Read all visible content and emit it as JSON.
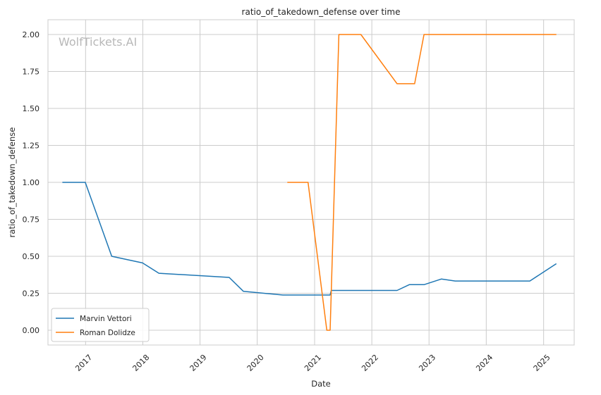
{
  "chart_data": {
    "type": "line",
    "title": "ratio_of_takedown_defense over time",
    "xlabel": "Date",
    "ylabel": "ratio_of_takedown_defense",
    "watermark": "WolfTickets.AI",
    "xlim": [
      "2016-05-06",
      "2025-07-15"
    ],
    "ylim": [
      -0.1,
      2.1
    ],
    "x_ticks": [
      "2017-01-01",
      "2018-01-01",
      "2019-01-01",
      "2020-01-01",
      "2021-01-01",
      "2022-01-01",
      "2023-01-01",
      "2024-01-01",
      "2025-01-01"
    ],
    "x_tick_labels": [
      "2017",
      "2018",
      "2019",
      "2020",
      "2021",
      "2022",
      "2023",
      "2024",
      "2025"
    ],
    "y_ticks": [
      0.0,
      0.25,
      0.5,
      0.75,
      1.0,
      1.25,
      1.5,
      1.75,
      2.0
    ],
    "y_tick_labels": [
      "0.00",
      "0.25",
      "0.50",
      "0.75",
      "1.00",
      "1.25",
      "1.50",
      "1.75",
      "2.00"
    ],
    "grid": true,
    "legend_position": "lower-left",
    "series": [
      {
        "name": "Marvin Vettori",
        "color": "#1f77b4",
        "points": [
          [
            "2016-08-06",
            1.0
          ],
          [
            "2016-12-30",
            1.0
          ],
          [
            "2017-06-17",
            0.5
          ],
          [
            "2017-12-30",
            0.455
          ],
          [
            "2018-04-14",
            0.385
          ],
          [
            "2019-07-06",
            0.357
          ],
          [
            "2019-10-05",
            0.263
          ],
          [
            "2020-06-13",
            0.238
          ],
          [
            "2021-04-10",
            0.238
          ],
          [
            "2021-04-17",
            0.269
          ],
          [
            "2022-06-11",
            0.269
          ],
          [
            "2022-08-28",
            0.308
          ],
          [
            "2022-11-30",
            0.308
          ],
          [
            "2023-03-20",
            0.346
          ],
          [
            "2023-06-17",
            0.333
          ],
          [
            "2024-10-05",
            0.333
          ],
          [
            "2025-03-23",
            0.45
          ]
        ]
      },
      {
        "name": "Roman Dolidze",
        "color": "#ff7f0e",
        "points": [
          [
            "2020-07-11",
            1.0
          ],
          [
            "2020-11-20",
            1.0
          ],
          [
            "2021-03-20",
            0.0
          ],
          [
            "2021-04-10",
            0.0
          ],
          [
            "2021-06-05",
            2.0
          ],
          [
            "2021-10-23",
            2.0
          ],
          [
            "2022-06-11",
            1.667
          ],
          [
            "2022-10-01",
            1.667
          ],
          [
            "2022-11-30",
            2.0
          ],
          [
            "2025-03-23",
            2.0
          ]
        ]
      }
    ]
  }
}
